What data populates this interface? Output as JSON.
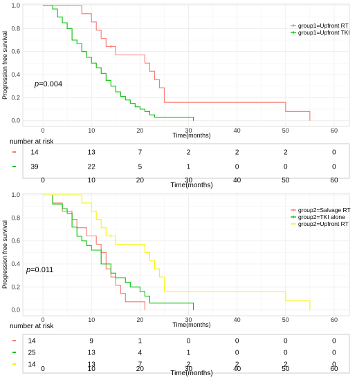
{
  "chart_data": [
    {
      "type": "line",
      "step": true,
      "ylabel": "Progression free survival",
      "xlabel": "Time(months)",
      "xlim": [
        -4,
        63
      ],
      "ylim": [
        -0.05,
        1.0
      ],
      "x_ticks": [
        "0",
        "10",
        "20",
        "30",
        "40",
        "50",
        "60"
      ],
      "y_ticks": [
        "0.0",
        "0.2",
        "0.4",
        "0.6",
        "0.8",
        "1.0"
      ],
      "grid": true,
      "legend_position": "top-right",
      "annotation": {
        "prefix": "p",
        "value": "=0.004"
      },
      "series": [
        {
          "name": "group1=Upfront RT",
          "color": "#f8766d",
          "points": [
            [
              0,
              1.0
            ],
            [
              8,
              1.0
            ],
            [
              8,
              0.929
            ],
            [
              10,
              0.929
            ],
            [
              10,
              0.857
            ],
            [
              11,
              0.857
            ],
            [
              11,
              0.786
            ],
            [
              12,
              0.786
            ],
            [
              12,
              0.714
            ],
            [
              13,
              0.714
            ],
            [
              13,
              0.643
            ],
            [
              15,
              0.643
            ],
            [
              15,
              0.571
            ],
            [
              21,
              0.571
            ],
            [
              21,
              0.5
            ],
            [
              22,
              0.5
            ],
            [
              22,
              0.429
            ],
            [
              23,
              0.429
            ],
            [
              23,
              0.357
            ],
            [
              24,
              0.357
            ],
            [
              24,
              0.286
            ],
            [
              25,
              0.286
            ],
            [
              25,
              0.159
            ],
            [
              50,
              0.159
            ],
            [
              50,
              0.08
            ],
            [
              55,
              0.08
            ],
            [
              55,
              0.0
            ]
          ],
          "censor": [
            [
              14,
              0.643
            ]
          ]
        },
        {
          "name": "group1=Upfront TKI",
          "color": "#00c000",
          "points": [
            [
              0,
              1.0
            ],
            [
              2,
              1.0
            ],
            [
              2,
              0.97
            ],
            [
              3,
              0.97
            ],
            [
              3,
              0.9
            ],
            [
              4,
              0.9
            ],
            [
              4,
              0.85
            ],
            [
              5,
              0.85
            ],
            [
              5,
              0.8
            ],
            [
              6,
              0.8
            ],
            [
              6,
              0.7
            ],
            [
              7,
              0.7
            ],
            [
              7,
              0.67
            ],
            [
              8,
              0.67
            ],
            [
              8,
              0.6
            ],
            [
              9,
              0.6
            ],
            [
              9,
              0.55
            ],
            [
              10,
              0.55
            ],
            [
              10,
              0.5
            ],
            [
              11,
              0.5
            ],
            [
              11,
              0.46
            ],
            [
              12,
              0.46
            ],
            [
              12,
              0.41
            ],
            [
              13,
              0.41
            ],
            [
              13,
              0.35
            ],
            [
              14,
              0.35
            ],
            [
              14,
              0.3
            ],
            [
              15,
              0.3
            ],
            [
              15,
              0.25
            ],
            [
              16,
              0.25
            ],
            [
              16,
              0.21
            ],
            [
              17,
              0.21
            ],
            [
              17,
              0.18
            ],
            [
              18,
              0.18
            ],
            [
              18,
              0.15
            ],
            [
              19,
              0.15
            ],
            [
              19,
              0.12
            ],
            [
              20,
              0.12
            ],
            [
              20,
              0.1
            ],
            [
              21,
              0.1
            ],
            [
              21,
              0.08
            ],
            [
              22,
              0.08
            ],
            [
              22,
              0.05
            ],
            [
              23,
              0.05
            ],
            [
              23,
              0.03
            ],
            [
              31,
              0.03
            ],
            [
              31,
              0.0
            ]
          ],
          "censor": []
        }
      ],
      "risk_table": {
        "title": "number at risk",
        "x_ticks": [
          "0",
          "10",
          "20",
          "30",
          "40",
          "50",
          "60"
        ],
        "xlabel": "Time(months)",
        "rows": [
          {
            "color": "#f8766d",
            "values": [
              "14",
              "13",
              "7",
              "2",
              "2",
              "2",
              "0"
            ]
          },
          {
            "color": "#00c000",
            "values": [
              "39",
              "22",
              "5",
              "1",
              "0",
              "0",
              "0"
            ]
          }
        ]
      }
    },
    {
      "type": "line",
      "step": true,
      "ylabel": "Progression free survival",
      "xlabel": "Time(months)",
      "xlim": [
        -4,
        63
      ],
      "ylim": [
        -0.05,
        1.0
      ],
      "x_ticks": [
        "0",
        "10",
        "20",
        "30",
        "40",
        "50",
        "60"
      ],
      "y_ticks": [
        "0.0",
        "0.2",
        "0.4",
        "0.6",
        "0.8",
        "1.0"
      ],
      "grid": true,
      "legend_position": "top-right",
      "annotation": {
        "prefix": "p",
        "value": "=0.011"
      },
      "series": [
        {
          "name": "group2=Salvage RT",
          "color": "#f8766d",
          "points": [
            [
              0,
              1.0
            ],
            [
              2,
              1.0
            ],
            [
              2,
              0.929
            ],
            [
              4,
              0.929
            ],
            [
              4,
              0.857
            ],
            [
              6,
              0.857
            ],
            [
              6,
              0.786
            ],
            [
              7,
              0.786
            ],
            [
              7,
              0.714
            ],
            [
              9,
              0.714
            ],
            [
              9,
              0.643
            ],
            [
              11,
              0.643
            ],
            [
              11,
              0.571
            ],
            [
              12,
              0.571
            ],
            [
              12,
              0.5
            ],
            [
              13,
              0.5
            ],
            [
              13,
              0.357
            ],
            [
              14,
              0.357
            ],
            [
              14,
              0.286
            ],
            [
              15,
              0.286
            ],
            [
              15,
              0.214
            ],
            [
              16,
              0.214
            ],
            [
              16,
              0.143
            ],
            [
              17,
              0.143
            ],
            [
              17,
              0.071
            ],
            [
              21,
              0.071
            ],
            [
              21,
              0.0
            ]
          ],
          "censor": []
        },
        {
          "name": "group2=TKI alone",
          "color": "#00c000",
          "points": [
            [
              0,
              1.0
            ],
            [
              2,
              1.0
            ],
            [
              2,
              0.92
            ],
            [
              4,
              0.92
            ],
            [
              4,
              0.88
            ],
            [
              5,
              0.88
            ],
            [
              5,
              0.84
            ],
            [
              6,
              0.84
            ],
            [
              6,
              0.72
            ],
            [
              7,
              0.72
            ],
            [
              7,
              0.64
            ],
            [
              8,
              0.64
            ],
            [
              8,
              0.6
            ],
            [
              9,
              0.6
            ],
            [
              9,
              0.56
            ],
            [
              10,
              0.56
            ],
            [
              10,
              0.52
            ],
            [
              12,
              0.52
            ],
            [
              12,
              0.4
            ],
            [
              14,
              0.4
            ],
            [
              14,
              0.32
            ],
            [
              15,
              0.32
            ],
            [
              15,
              0.28
            ],
            [
              17,
              0.28
            ],
            [
              17,
              0.24
            ],
            [
              18,
              0.24
            ],
            [
              18,
              0.2
            ],
            [
              20,
              0.2
            ],
            [
              20,
              0.16
            ],
            [
              21,
              0.16
            ],
            [
              21,
              0.12
            ],
            [
              22,
              0.12
            ],
            [
              22,
              0.06
            ],
            [
              31,
              0.06
            ],
            [
              31,
              0.0
            ]
          ],
          "censor": []
        },
        {
          "name": "group2=Upfront RT",
          "color": "#f5f500",
          "points": [
            [
              0,
              1.0
            ],
            [
              8,
              1.0
            ],
            [
              8,
              0.929
            ],
            [
              10,
              0.929
            ],
            [
              10,
              0.857
            ],
            [
              11,
              0.857
            ],
            [
              11,
              0.786
            ],
            [
              12,
              0.786
            ],
            [
              12,
              0.714
            ],
            [
              13,
              0.714
            ],
            [
              13,
              0.643
            ],
            [
              15,
              0.643
            ],
            [
              15,
              0.571
            ],
            [
              21,
              0.571
            ],
            [
              21,
              0.5
            ],
            [
              22,
              0.5
            ],
            [
              22,
              0.429
            ],
            [
              23,
              0.429
            ],
            [
              23,
              0.357
            ],
            [
              24,
              0.357
            ],
            [
              24,
              0.286
            ],
            [
              25,
              0.286
            ],
            [
              25,
              0.159
            ],
            [
              50,
              0.159
            ],
            [
              50,
              0.08
            ],
            [
              55,
              0.08
            ],
            [
              55,
              0.0
            ]
          ],
          "censor": [
            [
              14,
              0.643
            ]
          ]
        }
      ],
      "risk_table": {
        "title": "number at risk",
        "x_ticks": [
          "0",
          "10",
          "20",
          "30",
          "40",
          "50",
          "60"
        ],
        "xlabel": "Time(months)",
        "rows": [
          {
            "color": "#f8766d",
            "values": [
              "14",
              "9",
              "1",
              "0",
              "0",
              "0",
              "0"
            ]
          },
          {
            "color": "#00c000",
            "values": [
              "25",
              "13",
              "4",
              "1",
              "0",
              "0",
              "0"
            ]
          },
          {
            "color": "#f5f500",
            "values": [
              "14",
              "13",
              "7",
              "2",
              "2",
              "2",
              "0"
            ]
          }
        ]
      }
    }
  ]
}
